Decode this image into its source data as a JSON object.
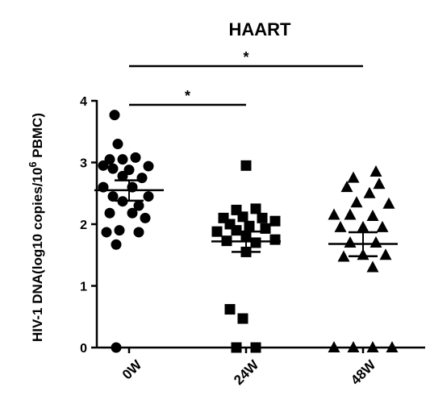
{
  "chart_data": {
    "type": "scatter",
    "title": "HAART",
    "ylabel_main": "HIV-1 DNA(log10 copies/10",
    "ylabel_sup": "6",
    "ylabel_end": " PBMC)",
    "ylim": [
      0,
      4
    ],
    "yticks": [
      0,
      1,
      2,
      3,
      4
    ],
    "grid": false,
    "categories": [
      "0W",
      "24W",
      "48W"
    ],
    "series": [
      {
        "category": "0W",
        "marker": "circle",
        "mean": 2.55,
        "sem": [
          2.38,
          2.71
        ],
        "points": [
          {
            "x": -0.45,
            "y": 3.77
          },
          {
            "x": -0.35,
            "y": 3.3
          },
          {
            "x": -0.6,
            "y": 3.05
          },
          {
            "x": -0.2,
            "y": 3.05
          },
          {
            "x": 0.2,
            "y": 3.08
          },
          {
            "x": -0.8,
            "y": 2.95
          },
          {
            "x": -0.5,
            "y": 2.9
          },
          {
            "x": 0.0,
            "y": 2.88
          },
          {
            "x": 0.6,
            "y": 2.94
          },
          {
            "x": -0.2,
            "y": 2.78
          },
          {
            "x": 0.4,
            "y": 2.75
          },
          {
            "x": -0.8,
            "y": 2.6
          },
          {
            "x": 0.1,
            "y": 2.6
          },
          {
            "x": -0.5,
            "y": 2.45
          },
          {
            "x": 0.6,
            "y": 2.45
          },
          {
            "x": -0.2,
            "y": 2.37
          },
          {
            "x": 0.3,
            "y": 2.3
          },
          {
            "x": -0.6,
            "y": 2.18
          },
          {
            "x": 0.1,
            "y": 2.18
          },
          {
            "x": 0.5,
            "y": 2.1
          },
          {
            "x": -0.3,
            "y": 1.9
          },
          {
            "x": -0.7,
            "y": 1.87
          },
          {
            "x": 0.3,
            "y": 1.87
          },
          {
            "x": -0.4,
            "y": 1.67
          },
          {
            "x": -0.4,
            "y": 0.0
          }
        ]
      },
      {
        "category": "24W",
        "marker": "square",
        "mean": 1.72,
        "sem": [
          1.55,
          1.88
        ],
        "points": [
          {
            "x": 0.0,
            "y": 2.95
          },
          {
            "x": -0.3,
            "y": 2.23
          },
          {
            "x": 0.3,
            "y": 2.25
          },
          {
            "x": -0.7,
            "y": 2.1
          },
          {
            "x": -0.1,
            "y": 2.12
          },
          {
            "x": 0.5,
            "y": 2.1
          },
          {
            "x": 0.9,
            "y": 2.05
          },
          {
            "x": -0.5,
            "y": 2.0
          },
          {
            "x": 0.1,
            "y": 1.97
          },
          {
            "x": -0.9,
            "y": 1.88
          },
          {
            "x": -0.3,
            "y": 1.9
          },
          {
            "x": 0.6,
            "y": 1.93
          },
          {
            "x": 0.0,
            "y": 1.8
          },
          {
            "x": 0.3,
            "y": 1.7
          },
          {
            "x": -0.6,
            "y": 1.73
          },
          {
            "x": 0.9,
            "y": 1.75
          },
          {
            "x": 0.0,
            "y": 1.55
          },
          {
            "x": -0.5,
            "y": 0.62
          },
          {
            "x": -0.1,
            "y": 0.47
          },
          {
            "x": -0.3,
            "y": 0.0
          },
          {
            "x": 0.3,
            "y": 0.0
          }
        ]
      },
      {
        "category": "48W",
        "marker": "triangle",
        "mean": 1.68,
        "sem": [
          1.48,
          1.87
        ],
        "points": [
          {
            "x": 0.4,
            "y": 2.85
          },
          {
            "x": -0.3,
            "y": 2.75
          },
          {
            "x": 0.5,
            "y": 2.65
          },
          {
            "x": -0.5,
            "y": 2.6
          },
          {
            "x": 0.2,
            "y": 2.5
          },
          {
            "x": -0.2,
            "y": 2.35
          },
          {
            "x": 0.8,
            "y": 2.33
          },
          {
            "x": -0.9,
            "y": 2.15
          },
          {
            "x": -0.4,
            "y": 2.15
          },
          {
            "x": 0.3,
            "y": 2.13
          },
          {
            "x": -0.7,
            "y": 1.95
          },
          {
            "x": 0.0,
            "y": 1.95
          },
          {
            "x": 0.6,
            "y": 1.95
          },
          {
            "x": -0.4,
            "y": 1.7
          },
          {
            "x": 0.4,
            "y": 1.7
          },
          {
            "x": 0.0,
            "y": 1.5
          },
          {
            "x": -0.6,
            "y": 1.47
          },
          {
            "x": 0.7,
            "y": 1.5
          },
          {
            "x": 0.3,
            "y": 1.3
          },
          {
            "x": -0.9,
            "y": 0.0
          },
          {
            "x": -0.3,
            "y": 0.0
          },
          {
            "x": 0.3,
            "y": 0.0
          },
          {
            "x": 0.9,
            "y": 0.0
          }
        ]
      }
    ],
    "significance": [
      {
        "from": "0W",
        "to": "24W",
        "label": "*"
      },
      {
        "from": "0W",
        "to": "48W",
        "label": "*"
      }
    ]
  }
}
